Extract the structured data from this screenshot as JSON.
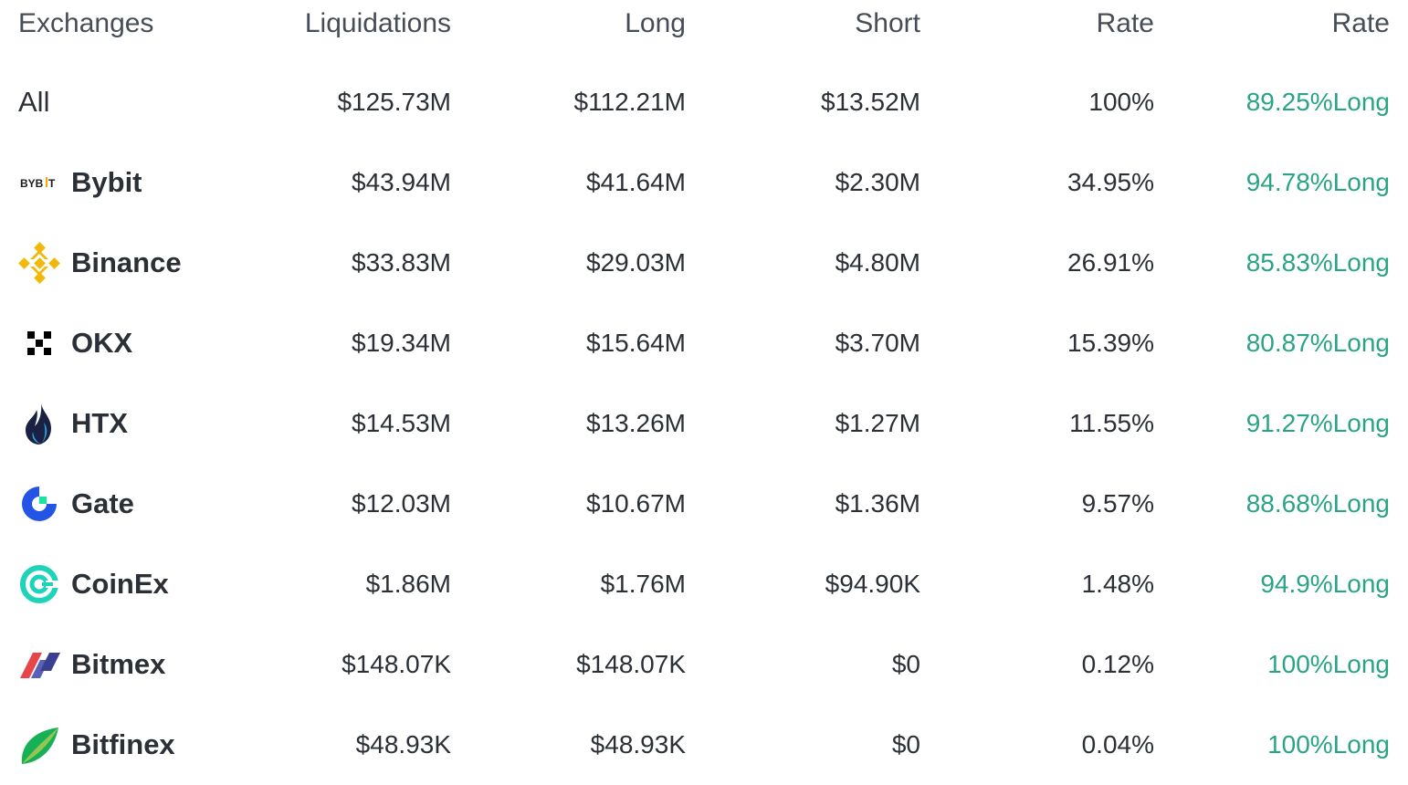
{
  "columns": {
    "exchanges": "Exchanges",
    "liquidations": "Liquidations",
    "long": "Long",
    "short": "Short",
    "rate": "Rate",
    "rate_long": "Rate"
  },
  "rows": [
    {
      "exchange": "All",
      "liquidations": "$125.73M",
      "long": "$112.21M",
      "short": "$13.52M",
      "rate": "100%",
      "rate_long": "89.25%Long"
    },
    {
      "exchange": "Bybit",
      "logo": "bybit-logo-icon",
      "liquidations": "$43.94M",
      "long": "$41.64M",
      "short": "$2.30M",
      "rate": "34.95%",
      "rate_long": "94.78%Long"
    },
    {
      "exchange": "Binance",
      "logo": "binance-logo-icon",
      "liquidations": "$33.83M",
      "long": "$29.03M",
      "short": "$4.80M",
      "rate": "26.91%",
      "rate_long": "85.83%Long"
    },
    {
      "exchange": "OKX",
      "logo": "okx-logo-icon",
      "liquidations": "$19.34M",
      "long": "$15.64M",
      "short": "$3.70M",
      "rate": "15.39%",
      "rate_long": "80.87%Long"
    },
    {
      "exchange": "HTX",
      "logo": "htx-logo-icon",
      "liquidations": "$14.53M",
      "long": "$13.26M",
      "short": "$1.27M",
      "rate": "11.55%",
      "rate_long": "91.27%Long"
    },
    {
      "exchange": "Gate",
      "logo": "gate-logo-icon",
      "liquidations": "$12.03M",
      "long": "$10.67M",
      "short": "$1.36M",
      "rate": "9.57%",
      "rate_long": "88.68%Long"
    },
    {
      "exchange": "CoinEx",
      "logo": "coinex-logo-icon",
      "liquidations": "$1.86M",
      "long": "$1.76M",
      "short": "$94.90K",
      "rate": "1.48%",
      "rate_long": "94.9%Long"
    },
    {
      "exchange": "Bitmex",
      "logo": "bitmex-logo-icon",
      "liquidations": "$148.07K",
      "long": "$148.07K",
      "short": "$0",
      "rate": "0.12%",
      "rate_long": "100%Long"
    },
    {
      "exchange": "Bitfinex",
      "logo": "bitfinex-logo-icon",
      "liquidations": "$48.93K",
      "long": "$48.93K",
      "short": "$0",
      "rate": "0.04%",
      "rate_long": "100%Long"
    }
  ],
  "logos": {
    "bybit_text_left": "BYB",
    "bybit_text_right": "T"
  },
  "colors": {
    "long_rate_green": "#2aa386",
    "text": "#2b2f36",
    "header_text": "#474d57"
  }
}
